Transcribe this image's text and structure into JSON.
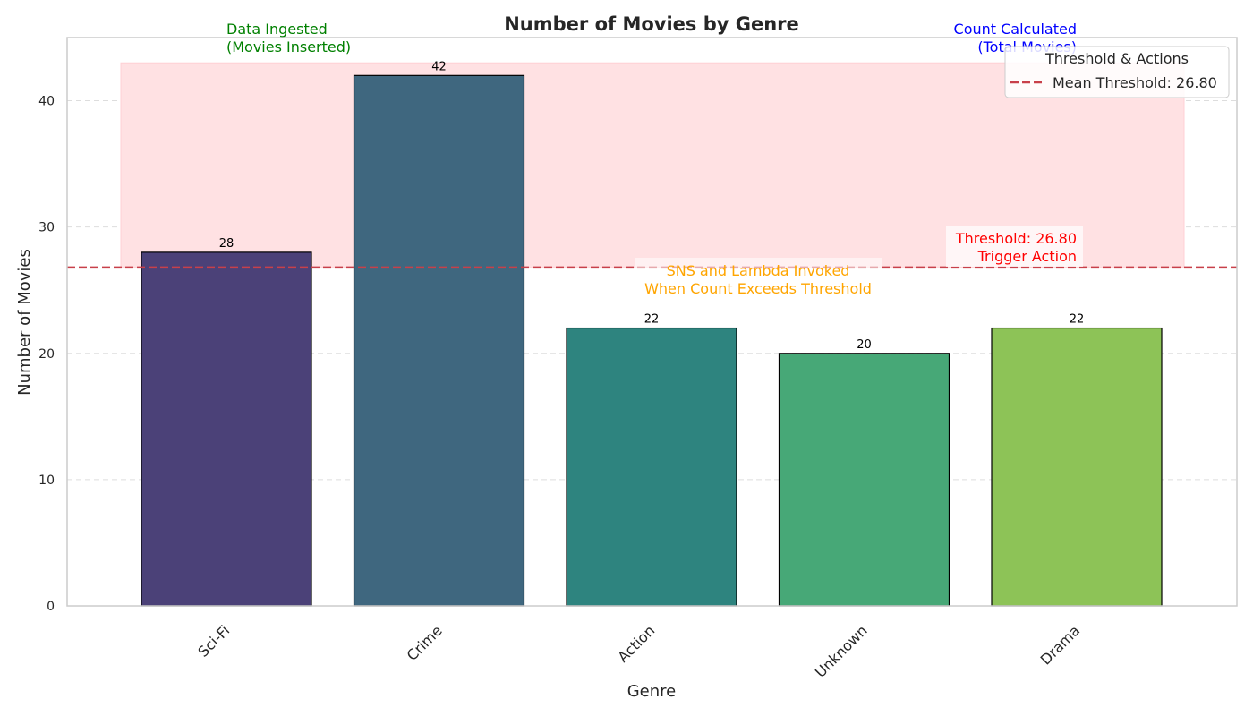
{
  "chart_data": {
    "type": "bar",
    "title": "Number of Movies by Genre",
    "xlabel": "Genre",
    "ylabel": "Number of Movies",
    "categories": [
      "Sci-Fi",
      "Crime",
      "Action",
      "Unknown",
      "Drama"
    ],
    "values": [
      28,
      42,
      22,
      20,
      22
    ],
    "bar_colors": [
      "#4b4178",
      "#3f677f",
      "#2e847f",
      "#47a877",
      "#8dc357"
    ],
    "ylim": [
      0,
      45
    ],
    "yticks": [
      0,
      10,
      20,
      30,
      40
    ],
    "grid": true,
    "threshold": {
      "value": 26.8,
      "color": "#c8404a",
      "label": "Threshold: 26.80\nTrigger Action"
    },
    "shaded_region": {
      "from": 26.8,
      "to": 43,
      "color": "#ffe1e3"
    },
    "legend": {
      "title": "Threshold & Actions",
      "placement": "top-right",
      "entries": [
        "Mean Threshold: 26.80"
      ]
    },
    "annotations": [
      {
        "id": "ingested",
        "text": "Data Ingested\n(Movies Inserted)",
        "color": "#008000"
      },
      {
        "id": "count",
        "text": "Count Calculated\n(Total Movies)",
        "color": "#0000ff"
      },
      {
        "id": "sns",
        "text": "SNS and Lambda Invoked\nWhen Count Exceeds Threshold",
        "color": "#ffa500"
      },
      {
        "id": "threshold",
        "text": "Threshold: 26.80\nTrigger Action",
        "color": "#ff0000"
      }
    ]
  }
}
